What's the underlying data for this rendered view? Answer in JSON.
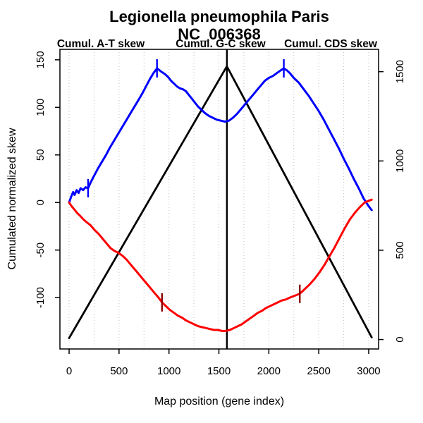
{
  "title": {
    "line1": "Legionella pneumophila Paris",
    "line2": "NC_006368"
  },
  "legend": {
    "items": [
      {
        "label": "Cumul. A-T skew",
        "color": "#ff0000"
      },
      {
        "label": "Cumul. G-C skew",
        "color": "#0000ff"
      },
      {
        "label": "Cumul. CDS skew",
        "color": "#000000"
      }
    ]
  },
  "axes": {
    "x_label": "Map position (gene index)",
    "left_label": "Cumulated normalized skew"
  },
  "chart_data": {
    "type": "line",
    "title": "Legionella pneumophila Paris",
    "subtitle": "NC_006368",
    "xlabel": "Map position (gene index)",
    "ylabel_left": "Cumulated normalized skew",
    "x_ticks": [
      0,
      500,
      1000,
      1500,
      2000,
      2500,
      3000
    ],
    "left_ticks": [
      150,
      100,
      50,
      0,
      -50,
      -100
    ],
    "right_ticks": [
      0,
      500,
      1000,
      1500
    ],
    "xlim": [
      -92,
      3099
    ],
    "left_ylim": [
      -154,
      161
    ],
    "right_ylim": [
      -53,
      1625
    ],
    "grid": {
      "vertical_from": 0,
      "vertical_to": 3000,
      "vertical_step": 250,
      "style": "dotted",
      "color": "#c0c0c0"
    },
    "vline": {
      "x": 1580,
      "color": "#000000"
    },
    "series": [
      {
        "name": "Cumul. CDS skew",
        "color": "#000000",
        "axis": "right",
        "width": 2.8,
        "points": [
          [
            0,
            8
          ],
          [
            1580,
            1530
          ],
          [
            3030,
            12
          ]
        ]
      },
      {
        "name": "Cumul. G-C skew",
        "color": "#0000ff",
        "axis": "left",
        "width": 3,
        "points": [
          [
            0,
            0
          ],
          [
            20,
            6
          ],
          [
            40,
            11
          ],
          [
            55,
            8
          ],
          [
            75,
            13
          ],
          [
            95,
            10
          ],
          [
            115,
            15
          ],
          [
            140,
            13
          ],
          [
            165,
            16
          ],
          [
            190,
            15
          ],
          [
            215,
            21
          ],
          [
            250,
            28
          ],
          [
            290,
            36
          ],
          [
            330,
            43
          ],
          [
            370,
            50
          ],
          [
            410,
            58
          ],
          [
            450,
            65
          ],
          [
            490,
            72
          ],
          [
            530,
            79
          ],
          [
            570,
            86
          ],
          [
            610,
            93
          ],
          [
            650,
            100
          ],
          [
            690,
            107
          ],
          [
            730,
            114
          ],
          [
            770,
            122
          ],
          [
            810,
            130
          ],
          [
            845,
            136
          ],
          [
            880,
            141
          ],
          [
            905,
            139
          ],
          [
            930,
            137
          ],
          [
            960,
            135
          ],
          [
            990,
            132
          ],
          [
            1020,
            128
          ],
          [
            1050,
            125
          ],
          [
            1080,
            122
          ],
          [
            1110,
            120
          ],
          [
            1140,
            119
          ],
          [
            1170,
            117
          ],
          [
            1200,
            113
          ],
          [
            1230,
            109
          ],
          [
            1260,
            105
          ],
          [
            1290,
            101
          ],
          [
            1320,
            98
          ],
          [
            1360,
            94
          ],
          [
            1400,
            91
          ],
          [
            1440,
            89
          ],
          [
            1480,
            87
          ],
          [
            1520,
            86
          ],
          [
            1560,
            85
          ],
          [
            1600,
            86
          ],
          [
            1640,
            89
          ],
          [
            1680,
            93
          ],
          [
            1720,
            98
          ],
          [
            1760,
            103
          ],
          [
            1800,
            108
          ],
          [
            1840,
            113
          ],
          [
            1880,
            118
          ],
          [
            1920,
            123
          ],
          [
            1960,
            128
          ],
          [
            2000,
            131
          ],
          [
            2040,
            133
          ],
          [
            2080,
            136
          ],
          [
            2120,
            139
          ],
          [
            2150,
            141
          ],
          [
            2180,
            139
          ],
          [
            2210,
            136
          ],
          [
            2250,
            131
          ],
          [
            2300,
            126
          ],
          [
            2350,
            119
          ],
          [
            2400,
            112
          ],
          [
            2450,
            104
          ],
          [
            2500,
            96
          ],
          [
            2550,
            87
          ],
          [
            2600,
            77
          ],
          [
            2650,
            67
          ],
          [
            2700,
            57
          ],
          [
            2750,
            46
          ],
          [
            2800,
            36
          ],
          [
            2850,
            25
          ],
          [
            2900,
            15
          ],
          [
            2950,
            4
          ],
          [
            3000,
            -4
          ],
          [
            3030,
            -8
          ]
        ]
      },
      {
        "name": "Cumul. A-T skew",
        "color": "#ff0000",
        "axis": "left",
        "width": 3,
        "points": [
          [
            0,
            0
          ],
          [
            25,
            -4
          ],
          [
            50,
            -7
          ],
          [
            80,
            -11
          ],
          [
            110,
            -14
          ],
          [
            145,
            -18
          ],
          [
            180,
            -21
          ],
          [
            215,
            -24
          ],
          [
            255,
            -29
          ],
          [
            295,
            -33
          ],
          [
            335,
            -38
          ],
          [
            375,
            -43
          ],
          [
            415,
            -48
          ],
          [
            455,
            -51
          ],
          [
            495,
            -53
          ],
          [
            535,
            -56
          ],
          [
            575,
            -60
          ],
          [
            615,
            -65
          ],
          [
            655,
            -70
          ],
          [
            695,
            -75
          ],
          [
            735,
            -80
          ],
          [
            775,
            -85
          ],
          [
            815,
            -90
          ],
          [
            855,
            -95
          ],
          [
            895,
            -100
          ],
          [
            930,
            -105
          ],
          [
            970,
            -109
          ],
          [
            1010,
            -113
          ],
          [
            1050,
            -116
          ],
          [
            1090,
            -119
          ],
          [
            1130,
            -121
          ],
          [
            1170,
            -124
          ],
          [
            1210,
            -126
          ],
          [
            1250,
            -128
          ],
          [
            1290,
            -130
          ],
          [
            1330,
            -131
          ],
          [
            1370,
            -132
          ],
          [
            1410,
            -133
          ],
          [
            1450,
            -134
          ],
          [
            1490,
            -134
          ],
          [
            1530,
            -135
          ],
          [
            1570,
            -135
          ],
          [
            1610,
            -134
          ],
          [
            1650,
            -132
          ],
          [
            1690,
            -130
          ],
          [
            1730,
            -128
          ],
          [
            1770,
            -125
          ],
          [
            1810,
            -122
          ],
          [
            1850,
            -119
          ],
          [
            1890,
            -116
          ],
          [
            1930,
            -114
          ],
          [
            1970,
            -111
          ],
          [
            2010,
            -109
          ],
          [
            2050,
            -107
          ],
          [
            2090,
            -105
          ],
          [
            2130,
            -103
          ],
          [
            2170,
            -102
          ],
          [
            2210,
            -100
          ],
          [
            2260,
            -98
          ],
          [
            2310,
            -96
          ],
          [
            2360,
            -91
          ],
          [
            2410,
            -86
          ],
          [
            2460,
            -80
          ],
          [
            2510,
            -73
          ],
          [
            2560,
            -65
          ],
          [
            2610,
            -56
          ],
          [
            2660,
            -47
          ],
          [
            2710,
            -37
          ],
          [
            2760,
            -27
          ],
          [
            2810,
            -18
          ],
          [
            2860,
            -11
          ],
          [
            2910,
            -5
          ],
          [
            2960,
            0
          ],
          [
            3030,
            3
          ]
        ]
      }
    ],
    "curve_markers": [
      {
        "x": 190,
        "y": 15,
        "axis": "left",
        "color": "#0000ff"
      },
      {
        "x": 880,
        "y": 141,
        "axis": "left",
        "color": "#0000ff"
      },
      {
        "x": 2150,
        "y": 141,
        "axis": "left",
        "color": "#0000ff"
      },
      {
        "x": 930,
        "y": -105,
        "axis": "left",
        "color": "#8b0000"
      },
      {
        "x": 2310,
        "y": -96,
        "axis": "left",
        "color": "#8b0000"
      }
    ],
    "legend_position": "top",
    "grid_horizontal": false
  }
}
